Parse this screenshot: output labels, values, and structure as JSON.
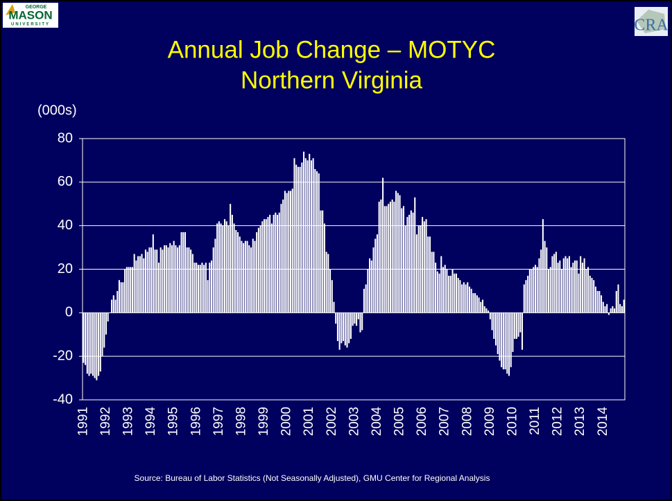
{
  "chart_data": {
    "type": "bar",
    "title": "Annual Job Change – MOTYC",
    "subtitle": "Northern Virginia",
    "y_label": "(000s)",
    "source": "Source: Bureau of Labor Statistics (Not Seasonally Adjusted), GMU Center for Regional Analysis",
    "logos": {
      "left": [
        "GEORGE",
        "MASON",
        "UNIVERSITY"
      ],
      "right": "CRA"
    },
    "color": "#ffffff",
    "grid": true,
    "ylim": [
      -40,
      80
    ],
    "yticks": [
      -40,
      -20,
      0,
      20,
      40,
      60,
      80
    ],
    "categories": [
      "1991",
      null,
      null,
      null,
      null,
      null,
      null,
      null,
      null,
      null,
      null,
      null,
      "1992",
      null,
      null,
      null,
      null,
      null,
      null,
      null,
      null,
      null,
      null,
      null,
      "1993",
      null,
      null,
      null,
      null,
      null,
      null,
      null,
      null,
      null,
      null,
      null,
      "1994",
      null,
      null,
      null,
      null,
      null,
      null,
      null,
      null,
      null,
      null,
      null,
      "1995",
      null,
      null,
      null,
      null,
      null,
      null,
      null,
      null,
      null,
      null,
      null,
      "1996",
      null,
      null,
      null,
      null,
      null,
      null,
      null,
      null,
      null,
      null,
      null,
      "1997",
      null,
      null,
      null,
      null,
      null,
      null,
      null,
      null,
      null,
      null,
      null,
      "1998",
      null,
      null,
      null,
      null,
      null,
      null,
      null,
      null,
      null,
      null,
      null,
      "1999",
      null,
      null,
      null,
      null,
      null,
      null,
      null,
      null,
      null,
      null,
      null,
      "2000",
      null,
      null,
      null,
      null,
      null,
      null,
      null,
      null,
      null,
      null,
      null,
      "2001",
      null,
      null,
      null,
      null,
      null,
      null,
      null,
      null,
      null,
      null,
      null,
      "2002",
      null,
      null,
      null,
      null,
      null,
      null,
      null,
      null,
      null,
      null,
      null,
      "2003",
      null,
      null,
      null,
      null,
      null,
      null,
      null,
      null,
      null,
      null,
      null,
      "2004",
      null,
      null,
      null,
      null,
      null,
      null,
      null,
      null,
      null,
      null,
      null,
      "2005",
      null,
      null,
      null,
      null,
      null,
      null,
      null,
      null,
      null,
      null,
      null,
      "2006",
      null,
      null,
      null,
      null,
      null,
      null,
      null,
      null,
      null,
      null,
      null,
      "2007",
      null,
      null,
      null,
      null,
      null,
      null,
      null,
      null,
      null,
      null,
      null,
      "2008",
      null,
      null,
      null,
      null,
      null,
      null,
      null,
      null,
      null,
      null,
      null,
      "2009",
      null,
      null,
      null,
      null,
      null,
      null,
      null,
      null,
      null,
      null,
      null,
      "2010",
      null,
      null,
      null,
      null,
      null,
      null,
      null,
      null,
      null,
      null,
      null,
      "2011",
      null,
      null,
      null,
      null,
      null,
      null,
      null,
      null,
      null,
      null,
      null,
      "2012",
      null,
      null,
      null,
      null,
      null,
      null,
      null,
      null,
      null,
      null,
      null,
      "2013",
      null,
      null,
      null,
      null,
      null,
      null,
      null,
      null,
      null,
      null,
      null,
      "2014",
      null,
      null,
      null,
      null,
      null,
      null,
      null,
      null,
      null,
      null,
      null
    ],
    "values": [
      -23,
      -24,
      -28,
      -29,
      -28,
      -29,
      -30,
      -31,
      -29,
      -27,
      -20,
      -16,
      -10,
      -4,
      0,
      6,
      8,
      6,
      10,
      15,
      14,
      14,
      20,
      21,
      21,
      21,
      21,
      27,
      24,
      26,
      26,
      27,
      25,
      29,
      28,
      30,
      30,
      36,
      29,
      29,
      23,
      30,
      29,
      31,
      31,
      30,
      32,
      31,
      33,
      31,
      30,
      31,
      37,
      37,
      37,
      30,
      30,
      29,
      27,
      23,
      23,
      22,
      22,
      23,
      22,
      23,
      15,
      23,
      24,
      30,
      34,
      41,
      42,
      41,
      40,
      43,
      42,
      40,
      50,
      45,
      41,
      38,
      37,
      35,
      33,
      32,
      33,
      33,
      31,
      30,
      34,
      33,
      37,
      39,
      40,
      42,
      43,
      43,
      44,
      45,
      41,
      45,
      46,
      45,
      46,
      50,
      52,
      56,
      55,
      56,
      56,
      57,
      71,
      68,
      67,
      67,
      69,
      74,
      71,
      70,
      73,
      70,
      71,
      66,
      65,
      64,
      47,
      47,
      41,
      28,
      27,
      20,
      15,
      5,
      -5,
      -13,
      -17,
      -14,
      -13,
      -15,
      -16,
      -14,
      -12,
      -6,
      -5,
      -6,
      -3,
      -9,
      -8,
      11,
      13,
      20,
      25,
      24,
      30,
      34,
      36,
      51,
      52,
      62,
      49,
      49,
      50,
      51,
      52,
      51,
      56,
      55,
      54,
      48,
      49,
      40,
      44,
      45,
      47,
      46,
      53,
      36,
      40,
      40,
      44,
      42,
      43,
      35,
      35,
      28,
      28,
      23,
      19,
      18,
      26,
      21,
      22,
      20,
      17,
      17,
      20,
      18,
      18,
      16,
      15,
      13,
      14,
      13,
      14,
      12,
      11,
      9,
      9,
      8,
      7,
      5,
      6,
      3,
      2,
      1,
      -3,
      -8,
      -12,
      -15,
      -19,
      -22,
      -25,
      -26,
      -26,
      -28,
      -29,
      -25,
      -18,
      -12,
      -12,
      -11,
      -9,
      -17,
      13,
      15,
      17,
      20,
      20,
      21,
      22,
      21,
      25,
      29,
      43,
      33,
      30,
      20,
      21,
      26,
      27,
      28,
      23,
      24,
      20,
      25,
      26,
      25,
      26,
      21,
      23,
      24,
      24,
      18,
      26,
      23,
      25,
      20,
      21,
      17,
      16,
      15,
      12,
      10,
      10,
      8,
      5,
      3,
      4,
      -1,
      2,
      3,
      2,
      10,
      13,
      4,
      3,
      6
    ]
  }
}
